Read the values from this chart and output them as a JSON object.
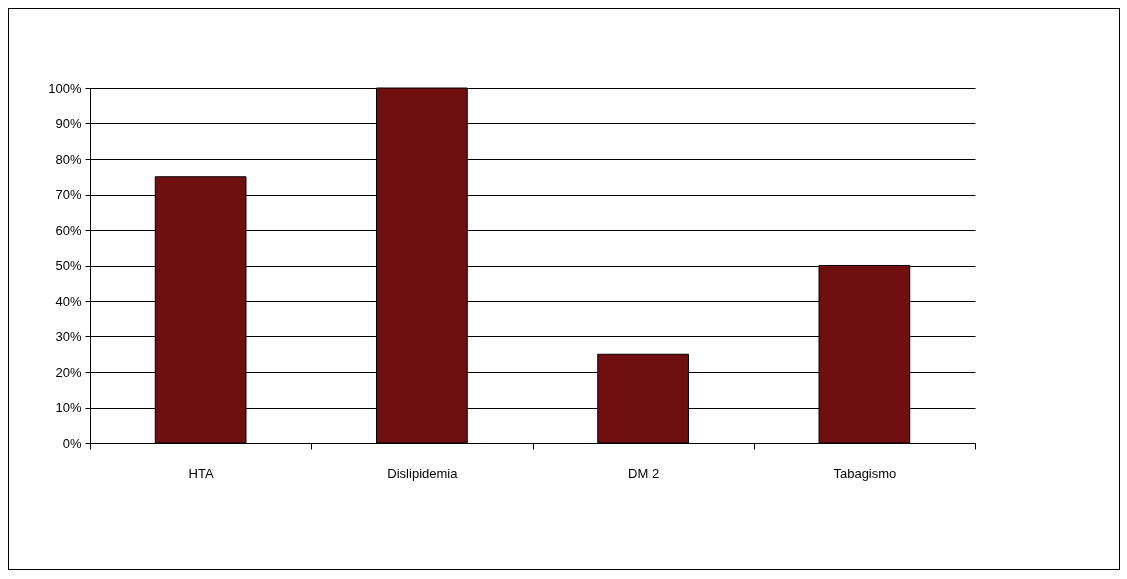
{
  "chart_data": {
    "type": "bar",
    "categories": [
      "HTA",
      "Dislipidemia",
      "DM 2",
      "Tabagismo"
    ],
    "values": [
      75,
      100,
      25,
      50
    ],
    "color": "#6f0f0f",
    "ylim": [
      0,
      100
    ],
    "yticks": [
      {
        "value": 0,
        "label": "0%"
      },
      {
        "value": 10,
        "label": "10%"
      },
      {
        "value": 20,
        "label": "20%"
      },
      {
        "value": 30,
        "label": "30%"
      },
      {
        "value": 40,
        "label": "40%"
      },
      {
        "value": 50,
        "label": "50%"
      },
      {
        "value": 60,
        "label": "60%"
      },
      {
        "value": 70,
        "label": "70%"
      },
      {
        "value": 80,
        "label": "80%"
      },
      {
        "value": 90,
        "label": "90%"
      },
      {
        "value": 100,
        "label": "100%"
      }
    ],
    "grid": "y"
  }
}
